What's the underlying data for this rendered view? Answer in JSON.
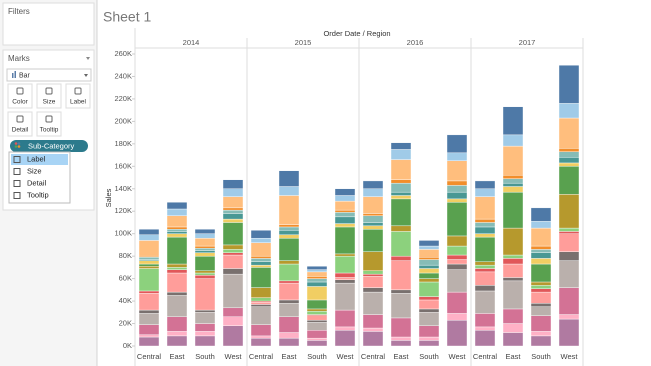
{
  "ui": {
    "filters": "Filters",
    "marks": "Marks",
    "mark_type": "Bar",
    "buttons": [
      "Color",
      "Size",
      "Label",
      "Detail",
      "Tooltip"
    ],
    "pill": "Sub-Category",
    "menu": [
      "Label",
      "Size",
      "Detail",
      "Tooltip"
    ],
    "sheet_title": "Sheet 1"
  },
  "chart_data": {
    "type": "stacked_bar",
    "title": "Order Date / Region",
    "y_label": "Sales",
    "years": [
      "2014",
      "2015",
      "2016",
      "2017"
    ],
    "categories": [
      "Central",
      "East",
      "South",
      "West",
      "Central",
      "East",
      "South",
      "West",
      "Central",
      "East",
      "South",
      "West",
      "Central",
      "East",
      "South",
      "West"
    ],
    "ylim": [
      0,
      260000
    ],
    "yticks": [
      {
        "value": 0,
        "label": "0K"
      },
      {
        "value": 20000,
        "label": "20K"
      },
      {
        "value": 40000,
        "label": "40K"
      },
      {
        "value": 60000,
        "label": "60K"
      },
      {
        "value": 80000,
        "label": "80K"
      },
      {
        "value": 100000,
        "label": "100K"
      },
      {
        "value": 120000,
        "label": "120K"
      },
      {
        "value": 140000,
        "label": "140K"
      },
      {
        "value": 160000,
        "label": "160K"
      },
      {
        "value": 180000,
        "label": "180K"
      },
      {
        "value": 200000,
        "label": "200K"
      },
      {
        "value": 220000,
        "label": "220K"
      },
      {
        "value": 240000,
        "label": "240K"
      },
      {
        "value": 260000,
        "label": "260K"
      }
    ],
    "grid": false,
    "series": [
      {
        "color": "#b07aa1",
        "values": [
          8000,
          9000,
          9000,
          18000,
          7000,
          7000,
          5000,
          14000,
          13000,
          5000,
          5000,
          23000,
          14000,
          12000,
          9000,
          24000
        ]
      },
      {
        "color": "#ffb1c6",
        "values": [
          2000,
          4000,
          4000,
          8000,
          2000,
          5000,
          2000,
          3000,
          3000,
          3000,
          3000,
          6000,
          3000,
          8000,
          4000,
          4000
        ]
      },
      {
        "color": "#d37295",
        "values": [
          9000,
          13000,
          7000,
          8000,
          10000,
          14000,
          7000,
          15000,
          12000,
          17000,
          10000,
          19000,
          12000,
          13000,
          14000,
          24000
        ]
      },
      {
        "color": "#bab0ac",
        "values": [
          10000,
          19000,
          10000,
          30000,
          16000,
          12000,
          7000,
          24000,
          20000,
          22000,
          12000,
          20000,
          20000,
          25000,
          8000,
          24000
        ]
      },
      {
        "color": "#79706e",
        "values": [
          3000,
          3000,
          2000,
          5000,
          2000,
          3000,
          2000,
          3000,
          4000,
          3000,
          3000,
          5000,
          5000,
          3000,
          3000,
          8000
        ]
      },
      {
        "color": "#ff9d9a",
        "values": [
          15000,
          17000,
          28000,
          12000,
          2000,
          15000,
          4000,
          2000,
          10000,
          26000,
          8000,
          4000,
          12000,
          12000,
          10000,
          16000
        ]
      },
      {
        "color": "#e15759",
        "values": [
          2000,
          3000,
          3000,
          2000,
          1000,
          2000,
          1000,
          4000,
          2000,
          4000,
          3000,
          4000,
          3000,
          5000,
          3000,
          2000
        ]
      },
      {
        "color": "#8cd17d",
        "values": [
          20000,
          2000,
          2000,
          3000,
          3000,
          15000,
          3000,
          15000,
          3000,
          22000,
          13000,
          8000,
          3000,
          3000,
          3000,
          3000
        ]
      },
      {
        "color": "#b6992d",
        "values": [
          2000,
          3000,
          2000,
          4000,
          9000,
          3000,
          2000,
          2000,
          17000,
          5000,
          3000,
          9000,
          3000,
          24000,
          3000,
          30000
        ]
      },
      {
        "color": "#59a14f",
        "values": [
          2000,
          24000,
          13000,
          20000,
          18000,
          20000,
          8000,
          24000,
          20000,
          24000,
          5000,
          30000,
          22000,
          32000,
          16000,
          25000
        ]
      },
      {
        "color": "#f1ce63",
        "values": [
          3000,
          3000,
          3000,
          3000,
          2000,
          3000,
          12000,
          3000,
          3000,
          3000,
          4000,
          3000,
          3000,
          5000,
          5000,
          3000
        ]
      },
      {
        "color": "#499894",
        "values": [
          1000,
          2000,
          2000,
          5000,
          3000,
          4000,
          4000,
          6000,
          3000,
          3000,
          3000,
          6000,
          6000,
          3000,
          5000,
          5000
        ]
      },
      {
        "color": "#86bcb6",
        "values": [
          2000,
          2000,
          2000,
          3000,
          3000,
          3000,
          3000,
          4000,
          6000,
          8000,
          5000,
          6000,
          4000,
          4000,
          3000,
          5000
        ]
      },
      {
        "color": "#f28e2b",
        "values": [
          1000,
          2000,
          2000,
          2000,
          2000,
          2000,
          2000,
          2000,
          2000,
          3000,
          2000,
          4000,
          3000,
          3000,
          3000,
          3000
        ]
      },
      {
        "color": "#ffbe7d",
        "values": [
          14000,
          10000,
          7000,
          10000,
          12000,
          26000,
          4000,
          8000,
          15000,
          18000,
          7000,
          18000,
          20000,
          26000,
          16000,
          27000
        ]
      },
      {
        "color": "#a0cbe8",
        "values": [
          5000,
          6000,
          4000,
          7000,
          4000,
          8000,
          2000,
          5000,
          7000,
          9000,
          3000,
          7000,
          7000,
          10000,
          6000,
          13000
        ]
      },
      {
        "color": "#4e79a7",
        "values": [
          5000,
          6000,
          4000,
          8000,
          7000,
          14000,
          3000,
          6000,
          7000,
          6000,
          5000,
          16000,
          7000,
          25000,
          12000,
          34000
        ]
      }
    ]
  }
}
